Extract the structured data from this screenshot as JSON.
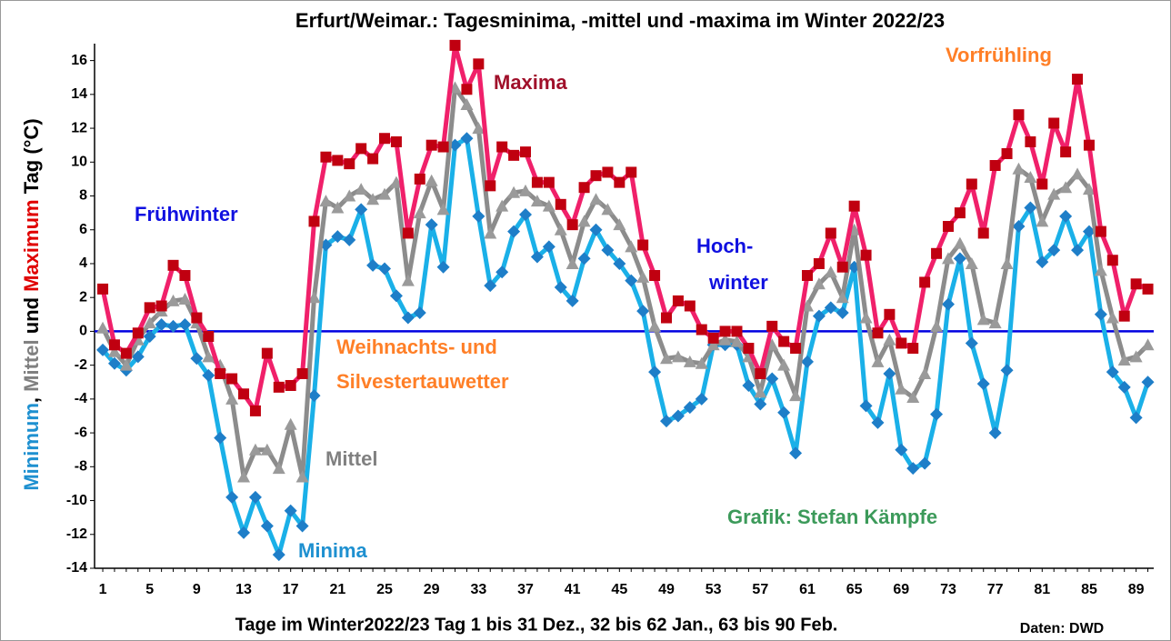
{
  "chart_data": {
    "type": "line",
    "title": "Erfurt/Weimar.: Tagesminima, -mittel und -maxima im Winter 2022/23",
    "xlabel": "Tage im Winter2022/23  Tag 1 bis 31 Dez., 32 bis 62 Jan., 63 bis 90 Feb.",
    "source": "Daten: DWD",
    "ylabel_parts": [
      {
        "text": "Minimum",
        "color": "#1e90d0"
      },
      {
        "text": ", ",
        "color": "#000000"
      },
      {
        "text": "Mittel",
        "color": "#808080"
      },
      {
        "text": " und ",
        "color": "#000000"
      },
      {
        "text": "Maximum",
        "color": "#e00000"
      },
      {
        "text": " Tag (°C)",
        "color": "#000000"
      }
    ],
    "annotations": [
      {
        "text": "Maxima",
        "color": "#a0102a"
      },
      {
        "text": "Vorfrühling",
        "color": "#ff7f27"
      },
      {
        "text": "Frühwinter",
        "color": "#1010e0"
      },
      {
        "text": "Hoch-",
        "color": "#1010e0"
      },
      {
        "text": "winter",
        "color": "#1010e0"
      },
      {
        "text": "Weihnachts- und",
        "color": "#ff7f27"
      },
      {
        "text": "Silvestertauwetter",
        "color": "#ff7f27"
      },
      {
        "text": "Mittel",
        "color": "#808080"
      },
      {
        "text": "Minima",
        "color": "#1e90d0"
      },
      {
        "text": "Grafik: Stefan Kämpfe",
        "color": "#3c9a5a"
      }
    ],
    "x": [
      1,
      2,
      3,
      4,
      5,
      6,
      7,
      8,
      9,
      10,
      11,
      12,
      13,
      14,
      15,
      16,
      17,
      18,
      19,
      20,
      21,
      22,
      23,
      24,
      25,
      26,
      27,
      28,
      29,
      30,
      31,
      32,
      33,
      34,
      35,
      36,
      37,
      38,
      39,
      40,
      41,
      42,
      43,
      44,
      45,
      46,
      47,
      48,
      49,
      50,
      51,
      52,
      53,
      54,
      55,
      56,
      57,
      58,
      59,
      60,
      61,
      62,
      63,
      64,
      65,
      66,
      67,
      68,
      69,
      70,
      71,
      72,
      73,
      74,
      75,
      76,
      77,
      78,
      79,
      80,
      81,
      82,
      83,
      84,
      85,
      86,
      87,
      88,
      89,
      90
    ],
    "xlim": [
      0.3,
      90.5
    ],
    "xticks": [
      1,
      5,
      9,
      13,
      17,
      21,
      25,
      29,
      33,
      37,
      41,
      45,
      49,
      53,
      57,
      61,
      65,
      69,
      73,
      77,
      81,
      85,
      89
    ],
    "ylim": [
      -14,
      17
    ],
    "yticks": [
      -14,
      -12,
      -10,
      -8,
      -6,
      -4,
      -2,
      0,
      2,
      4,
      6,
      8,
      10,
      12,
      14,
      16
    ],
    "zero_line_color": "#0000e0",
    "series": [
      {
        "name": "Minima",
        "color": "#1ab0e8",
        "marker_color": "#1e7ec8",
        "marker": "diamond",
        "values": [
          -1.1,
          -1.9,
          -2.3,
          -1.5,
          -0.3,
          0.4,
          0.3,
          0.4,
          -1.6,
          -2.6,
          -6.3,
          -9.8,
          -11.9,
          -9.8,
          -11.5,
          -13.2,
          -10.6,
          -11.5,
          -3.8,
          5.1,
          5.6,
          5.4,
          7.2,
          3.9,
          3.7,
          2.1,
          0.8,
          1.1,
          6.3,
          3.8,
          11.0,
          11.4,
          6.8,
          2.7,
          3.5,
          5.9,
          6.9,
          4.4,
          5.0,
          2.6,
          1.8,
          4.3,
          6.0,
          4.8,
          4.0,
          3.0,
          1.2,
          -2.4,
          -5.3,
          -5.0,
          -4.5,
          -4.0,
          -0.8,
          -0.8,
          -0.8,
          -3.2,
          -4.3,
          -2.8,
          -4.8,
          -7.2,
          -1.8,
          0.9,
          1.4,
          1.1,
          3.8,
          -4.4,
          -5.4,
          -2.5,
          -7.0,
          -8.1,
          -7.8,
          -4.9,
          1.6,
          4.3,
          -0.7,
          -3.1,
          -6.0,
          -2.3,
          6.2,
          7.3,
          4.1,
          4.8,
          6.8,
          4.8,
          5.9,
          1.0,
          -2.4,
          -3.3,
          -5.1,
          -3.0
        ]
      },
      {
        "name": "Mittel",
        "color": "#8c8c8c",
        "marker_color": "#9a9a9a",
        "marker": "triangle",
        "values": [
          0.2,
          -1.2,
          -2.0,
          -0.5,
          0.5,
          1.2,
          1.8,
          1.9,
          0.5,
          -1.5,
          -2.0,
          -4.0,
          -8.6,
          -7.0,
          -7.0,
          -8.1,
          -5.5,
          -8.6,
          2.0,
          7.7,
          7.3,
          8.0,
          8.4,
          7.8,
          8.1,
          8.8,
          3.0,
          7.0,
          8.9,
          7.2,
          14.4,
          13.4,
          12.0,
          5.8,
          7.4,
          8.2,
          8.3,
          7.7,
          7.4,
          6.0,
          4.0,
          6.5,
          7.8,
          7.2,
          6.3,
          5.0,
          3.2,
          0.3,
          -1.6,
          -1.5,
          -1.8,
          -1.9,
          -0.8,
          -0.5,
          -0.6,
          -1.5,
          -3.6,
          -0.8,
          -2.0,
          -3.8,
          1.5,
          2.8,
          3.5,
          2.0,
          6.0,
          0.8,
          -1.8,
          -0.5,
          -3.4,
          -3.9,
          -2.5,
          0.3,
          4.3,
          5.2,
          4.0,
          0.7,
          0.5,
          4.0,
          9.6,
          9.1,
          6.5,
          8.1,
          8.5,
          9.3,
          8.4,
          3.6,
          0.8,
          -1.7,
          -1.5,
          -0.8
        ]
      },
      {
        "name": "Maxima",
        "color": "#f0206a",
        "marker_color": "#c00010",
        "marker": "square",
        "values": [
          2.5,
          -0.8,
          -1.3,
          -0.1,
          1.4,
          1.5,
          3.9,
          3.3,
          0.8,
          -0.3,
          -2.5,
          -2.8,
          -3.7,
          -4.7,
          -1.3,
          -3.3,
          -3.2,
          -2.5,
          6.5,
          10.3,
          10.1,
          9.9,
          10.8,
          10.2,
          11.4,
          11.2,
          5.8,
          9.0,
          11.0,
          10.9,
          16.9,
          14.3,
          15.8,
          8.6,
          10.9,
          10.4,
          10.6,
          8.8,
          8.8,
          7.5,
          6.3,
          8.5,
          9.2,
          9.4,
          8.8,
          9.4,
          5.1,
          3.3,
          0.8,
          1.8,
          1.5,
          0.1,
          -0.4,
          0.0,
          0.0,
          -1.0,
          -2.5,
          0.3,
          -0.6,
          -1.0,
          3.3,
          4.0,
          5.8,
          3.8,
          7.4,
          4.5,
          -0.1,
          1.0,
          -0.7,
          -1.0,
          2.9,
          4.6,
          6.2,
          7.0,
          8.7,
          5.8,
          9.8,
          10.5,
          12.8,
          11.2,
          8.7,
          12.3,
          10.6,
          14.9,
          11.0,
          5.9,
          4.2,
          0.9,
          2.8,
          2.5
        ]
      }
    ]
  }
}
